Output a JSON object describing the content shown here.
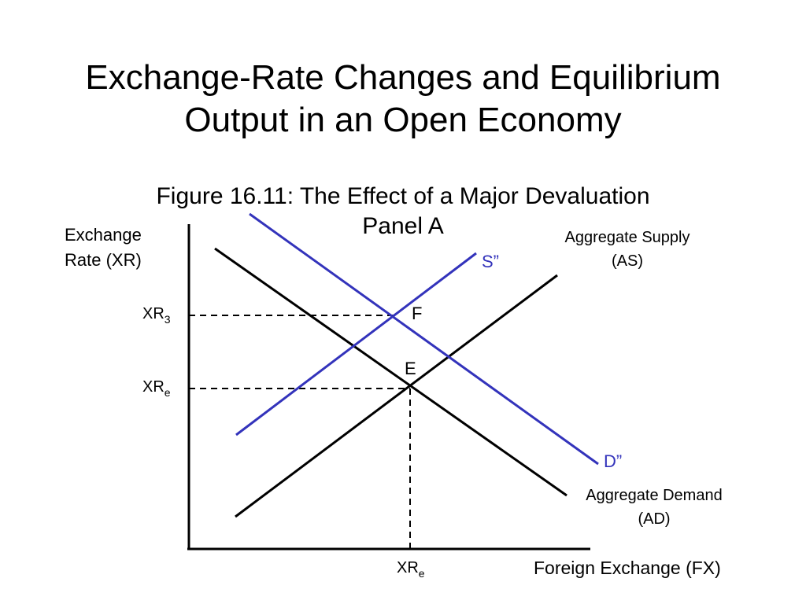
{
  "slide": {
    "title_line1": "Exchange-Rate Changes and Equilibrium",
    "title_line2": "Output in an Open Economy"
  },
  "figure": {
    "caption": "Figure 16.11: The Effect of a Major Devaluation",
    "panel": "Panel A"
  },
  "diagram": {
    "y_axis_label_line1": "Exchange",
    "y_axis_label_line2": "Rate (XR)",
    "x_axis_label": "Foreign Exchange (FX)",
    "tick_xr3": {
      "base": "XR",
      "sub": "3"
    },
    "tick_xre": {
      "base": "XR",
      "sub": "e"
    },
    "tick_x_xre": {
      "base": "XR",
      "sub": "e"
    },
    "curves": {
      "aggregate_supply_line1": "Aggregate Supply",
      "aggregate_supply_line2": "(AS)",
      "aggregate_demand_line1": "Aggregate Demand",
      "aggregate_demand_line2": "(AD)",
      "shifted_supply": "S”",
      "shifted_demand": "D”"
    },
    "points": {
      "E": "E",
      "F": "F"
    },
    "colors": {
      "original_curves": "#000000",
      "shifted_curves": "#3333bb"
    }
  }
}
